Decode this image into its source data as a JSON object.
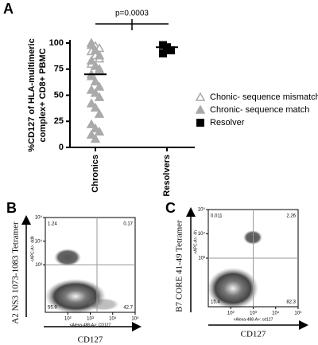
{
  "chart_data": [
    {
      "type": "strip",
      "label": "A",
      "ylabel": [
        "%CD127 of HLA-multimeric",
        "complex+ CD8+ PBMC"
      ],
      "annotation": "p=0.0003",
      "categories": [
        "Chronics",
        "Resolvers"
      ],
      "ylim": [
        0,
        100
      ],
      "yticks": [
        0,
        25,
        50,
        75,
        100
      ],
      "series": [
        {
          "name": "Chonic- sequence mismatch",
          "marker": "open-triangle",
          "color": "#aaaaaa",
          "category": 0,
          "values": [
            100,
            97,
            95,
            92,
            88,
            85,
            80,
            78,
            75,
            70
          ]
        },
        {
          "name": "Chronic- sequence match",
          "marker": "triangle",
          "color": "#aaaaaa",
          "category": 0,
          "values": [
            98,
            93,
            88,
            83,
            78,
            73,
            68,
            63,
            58,
            55,
            52,
            48,
            42,
            38,
            32,
            22,
            18,
            15,
            12,
            8
          ]
        },
        {
          "name": "Resolver",
          "marker": "square",
          "color": "#000000",
          "category": 1,
          "values": [
            98,
            96,
            93,
            90
          ]
        }
      ],
      "medians": [
        70,
        96
      ]
    },
    {
      "type": "flow",
      "label": "B",
      "ylabel": "A2 NS3 1073-1083 Tetramer",
      "xlabel": "CD127",
      "inner_xlabel": "<Alexa-488-A>: CD127",
      "inner_ylabel": "<APC-A>: dd9",
      "xlim": [
        10,
        100000
      ],
      "ylim": [
        10,
        100000
      ],
      "log": true,
      "gate": [
        2000,
        1000
      ],
      "xticks": [
        {
          "value": 100,
          "label": "10²"
        },
        {
          "value": 1000,
          "label": "10³"
        },
        {
          "value": 10000,
          "label": "10⁴"
        },
        {
          "value": 100000,
          "label": "10⁵"
        }
      ],
      "yticks": [
        {
          "value": 1000,
          "label": "10³"
        },
        {
          "value": 10000,
          "label": "10⁴"
        },
        {
          "value": 100000,
          "label": "10⁵"
        }
      ],
      "quadrants": [
        "1.24",
        "0.17",
        "55.9",
        "42.7"
      ]
    },
    {
      "type": "flow",
      "label": "C",
      "ylabel": "B7 CORE 41-49 Tetramer",
      "xlabel": "CD127",
      "inner_xlabel": "<Alexa-488-A>: cd127",
      "inner_ylabel": "<APC-A>: 4h",
      "xlim": [
        10,
        100000
      ],
      "ylim": [
        10,
        100000
      ],
      "log": true,
      "gate": [
        1000,
        1000
      ],
      "xticks": [
        {
          "value": 100,
          "label": "10²"
        },
        {
          "value": 1000,
          "label": "10³"
        },
        {
          "value": 10000,
          "label": "10⁴"
        },
        {
          "value": 100000,
          "label": "10⁵"
        }
      ],
      "yticks": [
        {
          "value": 1000,
          "label": "10³"
        },
        {
          "value": 10000,
          "label": "10⁴"
        },
        {
          "value": 100000,
          "label": "10⁵"
        }
      ],
      "quadrants": [
        "0.011",
        "2.26",
        "15.4",
        "82.3"
      ]
    }
  ]
}
